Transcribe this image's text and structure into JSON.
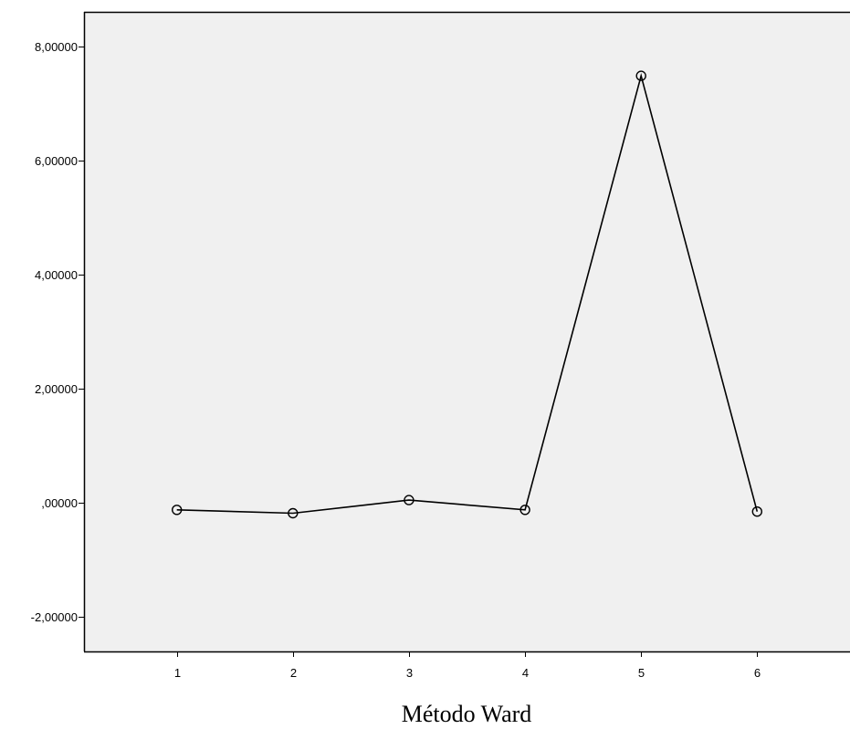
{
  "chart_data": {
    "type": "line",
    "title": "",
    "xlabel": "Método Ward",
    "ylabel": "",
    "x": [
      1,
      2,
      3,
      4,
      5,
      6
    ],
    "x_tick_labels": [
      "1",
      "2",
      "3",
      "4",
      "5",
      "6"
    ],
    "xlim": [
      0.2,
      6.8
    ],
    "y_ticks": [
      -2,
      0,
      2,
      4,
      6,
      8
    ],
    "y_tick_labels": [
      "-2,00000",
      ",00000",
      "2,00000",
      "4,00000",
      "6,00000",
      "8,00000"
    ],
    "ylim": [
      -2.6,
      8.6
    ],
    "series": [
      {
        "values": [
          -0.12,
          -0.18,
          0.05,
          -0.12,
          7.48,
          -0.15
        ],
        "marker": "open-circle",
        "color": "#000000"
      }
    ],
    "grid": false,
    "legend": "none",
    "plot_background": "#f0f0f0"
  }
}
